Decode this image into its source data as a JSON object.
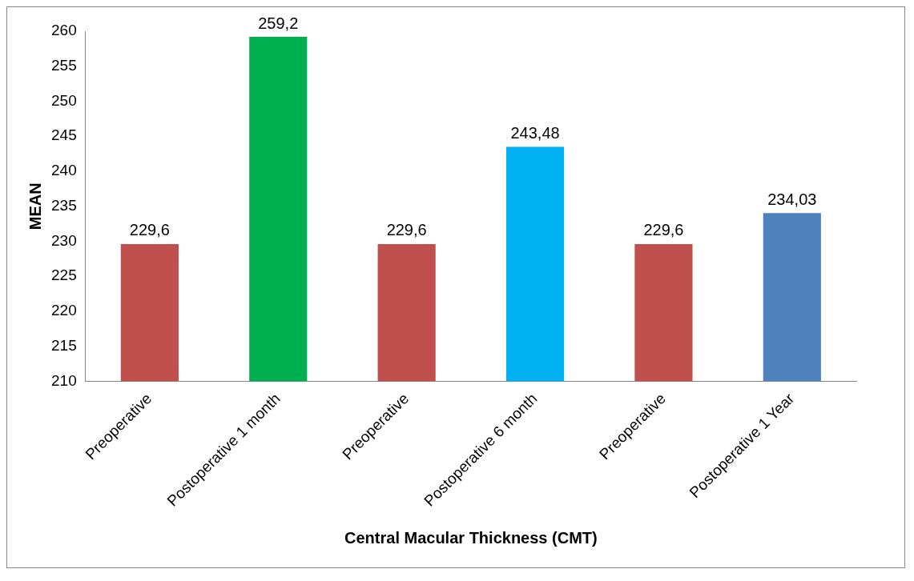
{
  "chart_data": {
    "type": "bar",
    "xlabel": "Central Macular Thickness (CMT)",
    "ylabel": "MEAN",
    "categories": [
      "Preoperative",
      "Postoperative 1 month",
      "Preoperative",
      "Postoperative 6 month",
      "Preoperative",
      "Postoperative 1 Year"
    ],
    "values": [
      229.6,
      259.2,
      229.6,
      243.48,
      229.6,
      234.03
    ],
    "value_labels": [
      "229,6",
      "259,2",
      "229,6",
      "243,48",
      "229,6",
      "234,03"
    ],
    "colors": [
      "#c0504d",
      "#00b050",
      "#c0504d",
      "#00b0f0",
      "#c0504d",
      "#4f81bd"
    ],
    "ylim": [
      210,
      260
    ],
    "yticks": [
      210,
      215,
      220,
      225,
      230,
      235,
      240,
      245,
      250,
      255,
      260
    ],
    "grid": false,
    "legend": false
  }
}
